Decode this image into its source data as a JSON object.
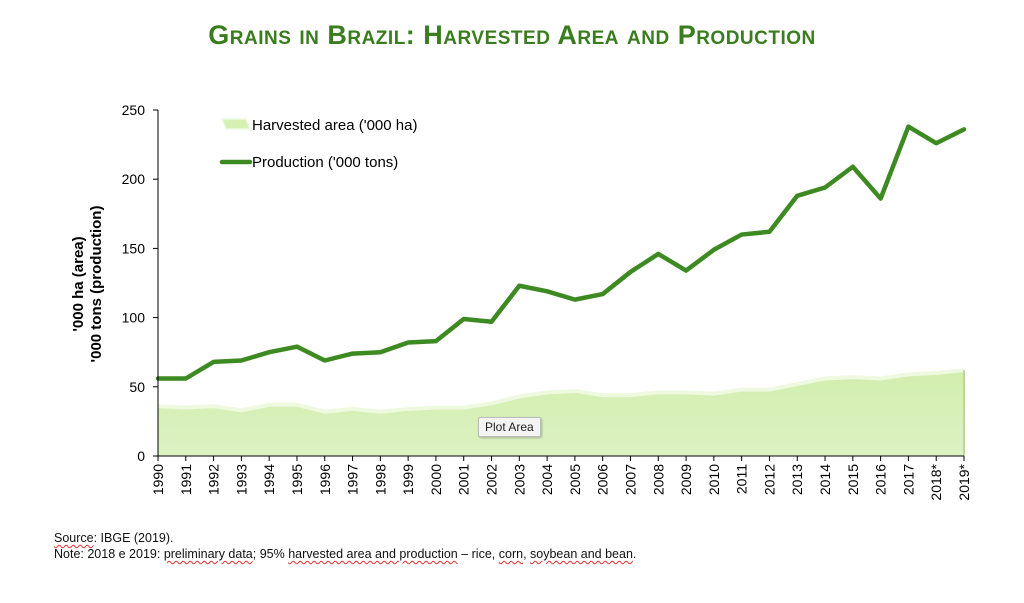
{
  "title": "Grains in Brazil: Harvested Area and Production",
  "tooltip": "Plot Area",
  "footnotes": {
    "source_prefix": "Source",
    "source_rest": ": IBGE (2019).",
    "note_prefix": "Note: 2018 e 2019: ",
    "note_w1": "preliminary data",
    "note_mid1": "; 95% ",
    "note_w2": "harvested area and production",
    "note_mid2": " – rice, ",
    "note_w3": "corn",
    "note_mid3": ", ",
    "note_w4": "soybean and bean",
    "note_end": "."
  },
  "colors": {
    "title": "#3a7d1e",
    "production_line": "#3e8a22",
    "area_fill": "#d6f0b4",
    "area_edge": "#eef9e0"
  },
  "chart_data": {
    "type": "line",
    "ylabel_lines": [
      "'000 ha (area)",
      "'000 tons (production)"
    ],
    "xlabel": "",
    "ylim": [
      0,
      250
    ],
    "yticks": [
      0,
      50,
      100,
      150,
      200,
      250
    ],
    "legend_position": "top-left",
    "grid": false,
    "categories": [
      "1990",
      "1991",
      "1992",
      "1993",
      "1994",
      "1995",
      "1996",
      "1997",
      "1998",
      "1999",
      "2000",
      "2001",
      "2002",
      "2003",
      "2004",
      "2005",
      "2006",
      "2007",
      "2008",
      "2009",
      "2010",
      "2011",
      "2012",
      "2013",
      "2014",
      "2015",
      "2016",
      "2017",
      "2018*",
      "2019*"
    ],
    "series": [
      {
        "name": "Harvested area ('000 ha)",
        "type": "area",
        "values": [
          36,
          35,
          36,
          33,
          37,
          37,
          32,
          34,
          32,
          34,
          35,
          35,
          38,
          43,
          46,
          47,
          44,
          44,
          46,
          46,
          45,
          48,
          48,
          52,
          56,
          57,
          56,
          59,
          60,
          62
        ]
      },
      {
        "name": "Production ('000 tons)",
        "type": "line",
        "values": [
          56,
          56,
          68,
          69,
          75,
          79,
          69,
          74,
          75,
          82,
          83,
          99,
          97,
          123,
          119,
          113,
          117,
          133,
          146,
          134,
          149,
          160,
          162,
          188,
          194,
          209,
          186,
          238,
          226,
          236
        ]
      }
    ]
  }
}
